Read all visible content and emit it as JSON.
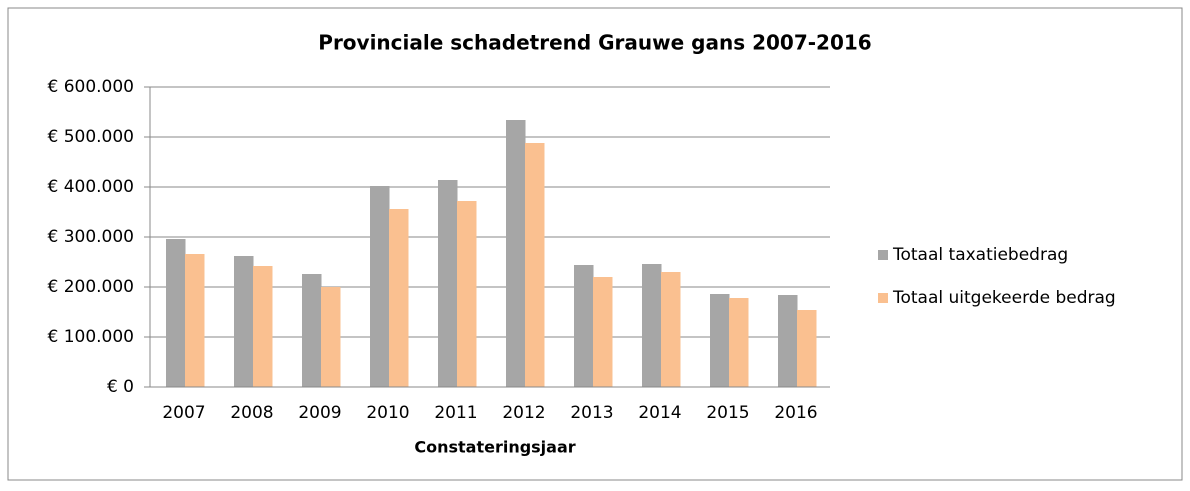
{
  "chart_data": {
    "type": "bar",
    "title": "Provinciale schadetrend Grauwe gans 2007-2016",
    "x_label": "Constateringsjaar",
    "categories": [
      "2007",
      "2008",
      "2009",
      "2010",
      "2011",
      "2012",
      "2013",
      "2014",
      "2015",
      "2016"
    ],
    "series": [
      {
        "name": "Totaal taxatiebedrag",
        "color": "#a6a6a6",
        "values": [
          296000,
          262000,
          226000,
          402000,
          414000,
          534000,
          244000,
          246000,
          186000,
          184000
        ]
      },
      {
        "name": "Totaal uitgekeerde bedrag",
        "color": "#fac090",
        "values": [
          266000,
          242000,
          200000,
          356000,
          372000,
          488000,
          220000,
          230000,
          178000,
          154000
        ]
      }
    ],
    "ylim": [
      0,
      600000
    ],
    "yticks": [
      {
        "value": 0,
        "label": "€ 0"
      },
      {
        "value": 100000,
        "label": "€ 100.000"
      },
      {
        "value": 200000,
        "label": "€ 200.000"
      },
      {
        "value": 300000,
        "label": "€ 300.000"
      },
      {
        "value": 400000,
        "label": "€ 400.000"
      },
      {
        "value": 500000,
        "label": "€ 500.000"
      },
      {
        "value": 600000,
        "label": "€ 600.000"
      }
    ],
    "grid": true,
    "legend": "right"
  }
}
